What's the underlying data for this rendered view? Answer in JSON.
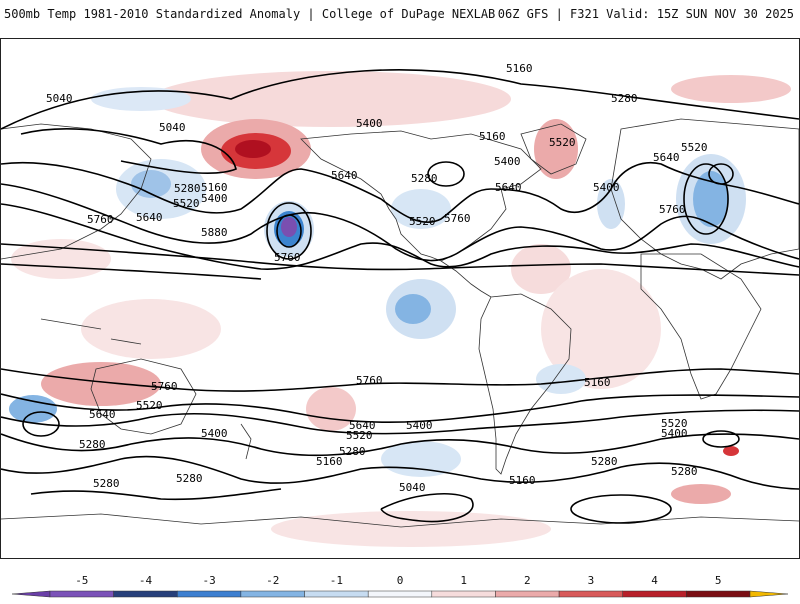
{
  "header": {
    "title_left": "500mb Temp 1981-2010 Standardized Anomaly | College of DuPage NEXLAB",
    "title_right": "06Z GFS | F321 Valid: 15Z SUN NOV 30 2025"
  },
  "map": {
    "contour_labels": [
      "5160",
      "5040",
      "5040",
      "5400",
      "5160",
      "5520",
      "5280",
      "5640",
      "5400",
      "5280",
      "5160",
      "5520",
      "5400",
      "5760",
      "5520",
      "5640",
      "5280",
      "5520",
      "5760",
      "5640",
      "5400",
      "5640",
      "5880",
      "5760",
      "5760",
      "5760",
      "5760",
      "5640",
      "5520",
      "5640",
      "5520",
      "5400",
      "5400",
      "5520",
      "5400",
      "5280",
      "5280",
      "5160",
      "5040",
      "5280",
      "5160",
      "5280",
      "5280",
      "5160",
      "5280"
    ],
    "colors": {
      "warm_light": "#f3c9c9",
      "warm_mid": "#e8a0a0",
      "warm_strong": "#d6363a",
      "warm_max": "#b01020",
      "cold_light": "#cfe0f2",
      "cold_mid": "#8ab8e4",
      "cold_strong": "#3c84cf",
      "cold_deep": "#7a4fb0"
    }
  },
  "colorbar": {
    "ticks": [
      "-5",
      "-4",
      "-3",
      "-2",
      "-1",
      "0",
      "1",
      "2",
      "3",
      "4",
      "5"
    ],
    "segments": [
      "#7b52b8",
      "#273f7a",
      "#3d7fd0",
      "#84b4e3",
      "#c7dcf1",
      "#f3f6fb",
      "#f6dcdc",
      "#ebaaaa",
      "#d85a5a",
      "#b8202a",
      "#7a0e14"
    ],
    "low_arrow_color": "#6a3fa8",
    "high_arrow_color": "#f2b800"
  }
}
